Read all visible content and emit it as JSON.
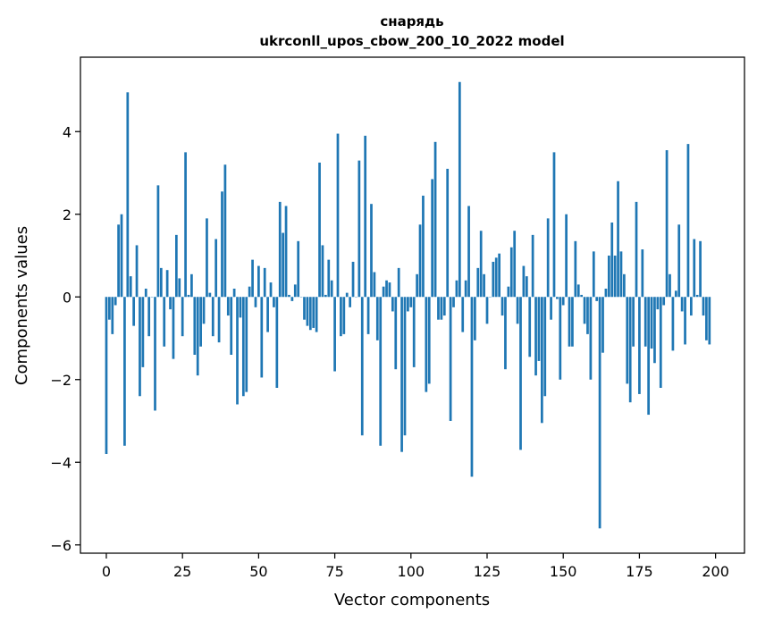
{
  "chart_data": {
    "type": "bar",
    "title": "снарядь",
    "subtitle": "ukrconll_upos_cbow_200_10_2022 model",
    "xlabel": "Vector components",
    "ylabel": "Components values",
    "xlim": [
      -8.5,
      209.5
    ],
    "ylim": [
      -6.2,
      5.8
    ],
    "xticks": [
      0,
      25,
      50,
      75,
      100,
      125,
      150,
      175,
      200
    ],
    "xtick_labels": [
      "0",
      "25",
      "50",
      "75",
      "100",
      "125",
      "150",
      "175",
      "200"
    ],
    "yticks": [
      -6,
      -4,
      -2,
      0,
      2,
      4
    ],
    "ytick_labels": [
      "−6",
      "−4",
      "−2",
      "0",
      "2",
      "4"
    ],
    "grid": false,
    "bar_color": "#1f77b4",
    "values": [
      -3.8,
      -0.55,
      -0.9,
      -0.2,
      1.75,
      2.0,
      -3.6,
      4.95,
      0.5,
      -0.7,
      1.25,
      -2.4,
      -1.7,
      0.2,
      -0.95,
      0.0,
      -2.75,
      2.7,
      0.7,
      -1.2,
      0.65,
      -0.3,
      -1.5,
      1.5,
      0.45,
      -0.95,
      3.5,
      0.05,
      0.55,
      -1.4,
      -1.9,
      -1.2,
      -0.65,
      1.9,
      0.1,
      -0.95,
      1.4,
      -1.1,
      2.55,
      3.2,
      -0.45,
      -1.4,
      0.2,
      -2.6,
      -0.5,
      -2.4,
      -2.3,
      0.25,
      0.9,
      -0.25,
      0.75,
      -1.95,
      0.7,
      -0.85,
      0.35,
      -0.25,
      -2.2,
      2.3,
      1.55,
      2.2,
      0.05,
      -0.1,
      0.3,
      1.35,
      0.0,
      -0.55,
      -0.7,
      -0.8,
      -0.75,
      -0.85,
      3.25,
      1.25,
      0.05,
      0.9,
      0.4,
      -1.8,
      3.95,
      -0.95,
      -0.9,
      0.1,
      -0.25,
      0.85,
      0.0,
      3.3,
      -3.35,
      3.9,
      -0.9,
      2.25,
      0.6,
      -1.05,
      -3.6,
      0.25,
      0.4,
      0.35,
      -0.35,
      -1.75,
      0.7,
      -3.75,
      -3.35,
      -0.35,
      -0.25,
      -1.7,
      0.55,
      1.75,
      2.45,
      -2.3,
      -2.1,
      2.85,
      3.75,
      -0.55,
      -0.55,
      -0.45,
      3.1,
      -3.0,
      -0.25,
      0.4,
      5.2,
      -0.85,
      0.4,
      2.2,
      -4.35,
      -1.05,
      0.7,
      1.6,
      0.55,
      -0.65,
      0.0,
      0.85,
      0.95,
      1.05,
      -0.45,
      -1.75,
      0.25,
      1.2,
      1.6,
      -0.65,
      -3.7,
      0.75,
      0.5,
      -1.45,
      1.5,
      -1.9,
      -1.55,
      -3.05,
      -2.4,
      1.9,
      -0.55,
      3.5,
      -0.05,
      -2.0,
      -0.2,
      2.0,
      -1.2,
      -1.2,
      1.35,
      0.3,
      0.05,
      -0.65,
      -0.9,
      -2.0,
      1.1,
      -0.1,
      -5.6,
      -1.35,
      0.2,
      1.0,
      1.8,
      1.0,
      2.8,
      1.1,
      0.55,
      -2.1,
      -2.55,
      -1.2,
      2.3,
      -2.35,
      1.15,
      -1.2,
      -2.85,
      -1.25,
      -1.6,
      -0.3,
      -2.2,
      -0.2,
      3.55,
      0.55,
      -1.3,
      0.15,
      1.75,
      -0.35,
      -1.15,
      3.7,
      -0.45,
      1.4,
      0.05,
      1.35,
      -0.45,
      -1.05,
      -1.15
    ]
  }
}
